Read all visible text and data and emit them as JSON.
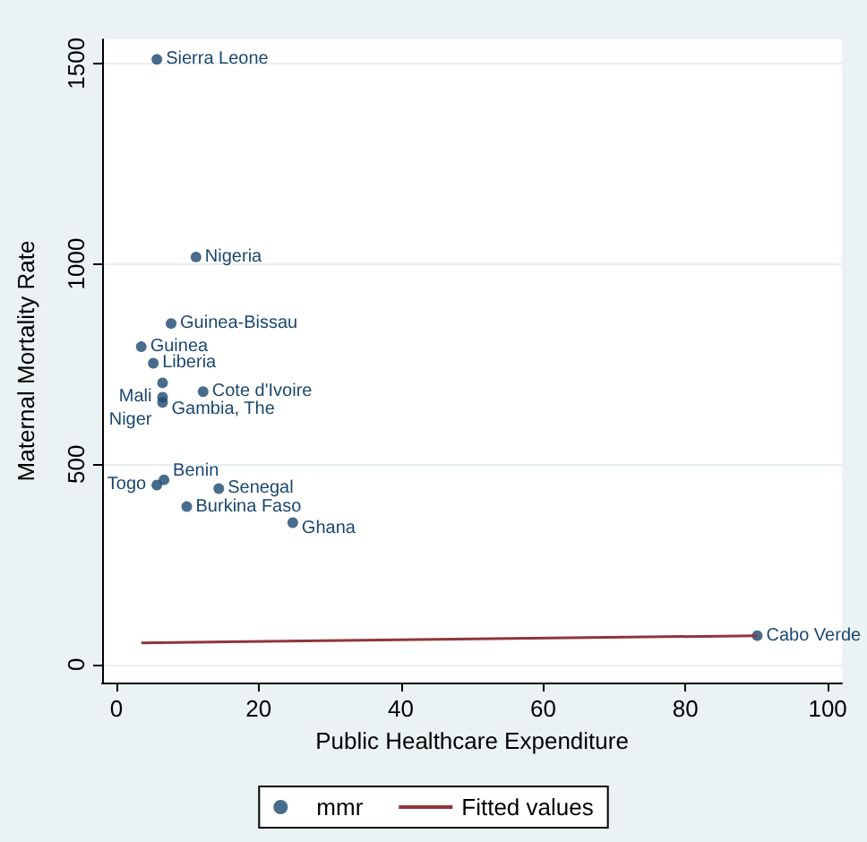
{
  "chart_data": {
    "type": "scatter",
    "xlabel": "Public Healthcare Expenditure",
    "ylabel": "Maternal Mortality Rate",
    "xlim": [
      -2,
      102
    ],
    "xticks": [
      0,
      20,
      40,
      60,
      80,
      100
    ],
    "ylim": [
      -45,
      1560
    ],
    "yticks": [
      0,
      500,
      1000,
      1500
    ],
    "grid": "y",
    "legend": "bottom",
    "marker": "circle",
    "series": [
      {
        "name": "mmr",
        "color": "#1a476f",
        "x": [
          5.7,
          11.2,
          7.7,
          3.5,
          5.2,
          6.5,
          12.2,
          6.5,
          6.5,
          6.7,
          5.7,
          14.4,
          9.9,
          24.8,
          90.1
        ],
        "values": [
          1510,
          1017,
          851,
          793,
          752,
          703,
          681,
          667,
          654,
          461,
          448,
          439,
          394,
          354,
          72
        ]
      },
      {
        "name": "Fitted values",
        "type": "line",
        "color": "#90353b",
        "marker": "none",
        "x": [
          3.5,
          90.1
        ],
        "values": [
          54,
          72
        ]
      }
    ],
    "annotations": [
      {
        "text": "Sierra Leone",
        "x": 5.7,
        "y": 1510
      },
      {
        "text": "Nigeria",
        "x": 11.2,
        "y": 1017
      },
      {
        "text": "Guinea-Bissau",
        "x": 7.7,
        "y": 851
      },
      {
        "text": "Guinea",
        "x": 3.5,
        "y": 793
      },
      {
        "text": "Liberia",
        "x": 5.2,
        "y": 752
      },
      {
        "text": "Gambia, The",
        "x": 6.5,
        "y": 703
      },
      {
        "text": "Cote d'Ivoire",
        "x": 12.2,
        "y": 681
      },
      {
        "text": "Mali",
        "x": 6.5,
        "y": 667
      },
      {
        "text": "Niger",
        "x": 6.5,
        "y": 654
      },
      {
        "text": "Benin",
        "x": 6.7,
        "y": 461
      },
      {
        "text": "Togo",
        "x": 5.7,
        "y": 448
      },
      {
        "text": "Senegal",
        "x": 14.4,
        "y": 439
      },
      {
        "text": "Burkina Faso",
        "x": 9.9,
        "y": 394
      },
      {
        "text": "Ghana",
        "x": 24.8,
        "y": 354
      },
      {
        "text": "Cabo Verde",
        "x": 90.1,
        "y": 72
      }
    ]
  }
}
